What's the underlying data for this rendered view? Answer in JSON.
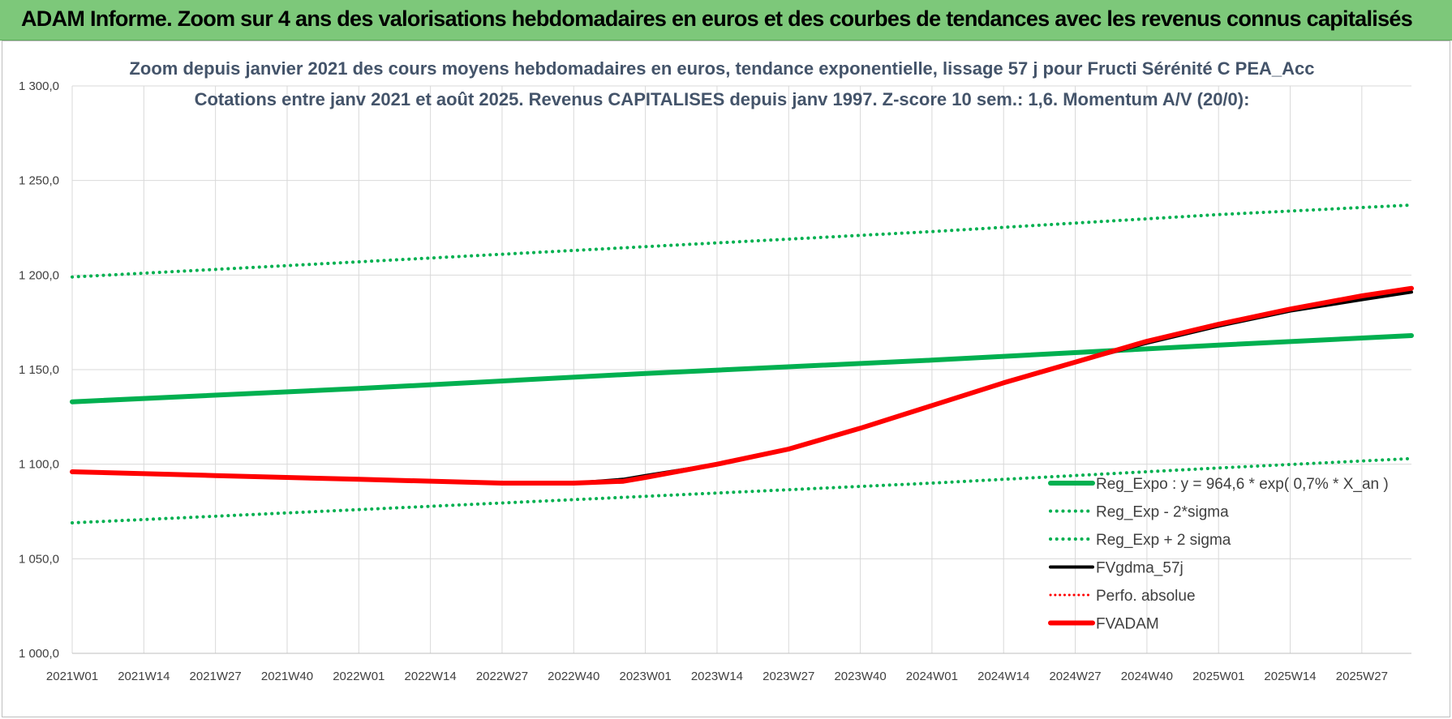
{
  "header": {
    "title": "ADAM Informe. Zoom sur 4 ans des valorisations hebdomadaires en euros et des courbes de tendances avec les revenus connus capitalisés"
  },
  "chart_data": {
    "type": "line",
    "title": "Zoom depuis janvier 2021 des cours moyens hebdomadaires en euros, tendance exponentielle, lissage 57 j pour Fructi Sérénité C PEA_Acc",
    "subtitle": "Cotations entre janv 2021 et août 2025. Revenus CAPITALISES depuis janv 1997. Z-score 10 sem.: 1,6. Momentum A/V (20/0):",
    "xlabel": "",
    "ylabel": "",
    "ylim": [
      1000,
      1300
    ],
    "y_ticks": [
      "1 000,0",
      "1 050,0",
      "1 100,0",
      "1 150,0",
      "1 200,0",
      "1 250,0",
      "1 300,0"
    ],
    "y_tick_values": [
      1000,
      1050,
      1100,
      1150,
      1200,
      1250,
      1300
    ],
    "x_ticks": [
      "2021W01",
      "2021W14",
      "2021W27",
      "2021W40",
      "2022W01",
      "2022W14",
      "2022W27",
      "2022W40",
      "2023W01",
      "2023W14",
      "2023W27",
      "2023W40",
      "2024W01",
      "2024W14",
      "2024W27",
      "2024W40",
      "2025W01",
      "2025W14",
      "2025W27"
    ],
    "x_tick_index": [
      0,
      13,
      26,
      39,
      52,
      65,
      78,
      91,
      104,
      117,
      130,
      143,
      156,
      169,
      182,
      195,
      208,
      221,
      234
    ],
    "x_max_index": 243,
    "grid": true,
    "legend_position": "bottom-right",
    "series_style": [
      {
        "key": "reg_expo",
        "color": "#00b050",
        "dash": "solid",
        "width": 6
      },
      {
        "key": "reg_minus",
        "color": "#00b050",
        "dash": "dotted",
        "width": 4
      },
      {
        "key": "reg_plus",
        "color": "#00b050",
        "dash": "dotted",
        "width": 4
      },
      {
        "key": "fvgdma",
        "color": "#000000",
        "dash": "solid",
        "width": 4
      },
      {
        "key": "perfo",
        "color": "#ff0000",
        "dash": "dotted",
        "width": 3
      },
      {
        "key": "fvadam",
        "color": "#ff0000",
        "dash": "solid",
        "width": 6
      }
    ],
    "series": [
      {
        "name": "Reg_Expo : y = 964,6 * exp( 0,7% *  X_an )",
        "x": [
          0,
          52,
          104,
          156,
          208,
          243
        ],
        "values": [
          1133,
          1140,
          1148,
          1155,
          1163,
          1168
        ]
      },
      {
        "name": "Reg_Exp - 2*sigma",
        "x": [
          0,
          52,
          104,
          156,
          208,
          243
        ],
        "values": [
          1069,
          1076,
          1083,
          1090,
          1098,
          1103
        ]
      },
      {
        "name": "Reg_Exp + 2 sigma",
        "x": [
          0,
          52,
          104,
          156,
          208,
          243
        ],
        "values": [
          1199,
          1207,
          1215,
          1223,
          1232,
          1237
        ]
      },
      {
        "name": "FVgdma_57j",
        "x": [
          0,
          26,
          52,
          78,
          91,
          100,
          104,
          117,
          130,
          143,
          156,
          169,
          182,
          195,
          208,
          221,
          234,
          243
        ],
        "values": [
          1096,
          1094,
          1092,
          1090,
          1090,
          1092,
          1094,
          1100,
          1108,
          1119,
          1131,
          1143,
          1154,
          1164,
          1173,
          1181,
          1187,
          1191
        ]
      },
      {
        "name": "Perfo. absolue",
        "x": [
          0,
          26,
          52,
          78,
          91,
          100,
          104,
          117,
          130,
          143,
          156,
          169,
          182,
          195,
          208,
          221,
          234,
          243
        ],
        "values": [
          1096,
          1094,
          1092,
          1090,
          1090,
          1091,
          1093,
          1100,
          1108,
          1119,
          1131,
          1143,
          1154,
          1165,
          1174,
          1182,
          1189,
          1193
        ]
      },
      {
        "name": "FVADAM",
        "x": [
          0,
          26,
          52,
          78,
          91,
          100,
          104,
          117,
          130,
          143,
          156,
          169,
          182,
          195,
          208,
          221,
          234,
          243
        ],
        "values": [
          1096,
          1094,
          1092,
          1090,
          1090,
          1091,
          1093,
          1100,
          1108,
          1119,
          1131,
          1143,
          1154,
          1165,
          1174,
          1182,
          1189,
          1193
        ]
      }
    ]
  }
}
